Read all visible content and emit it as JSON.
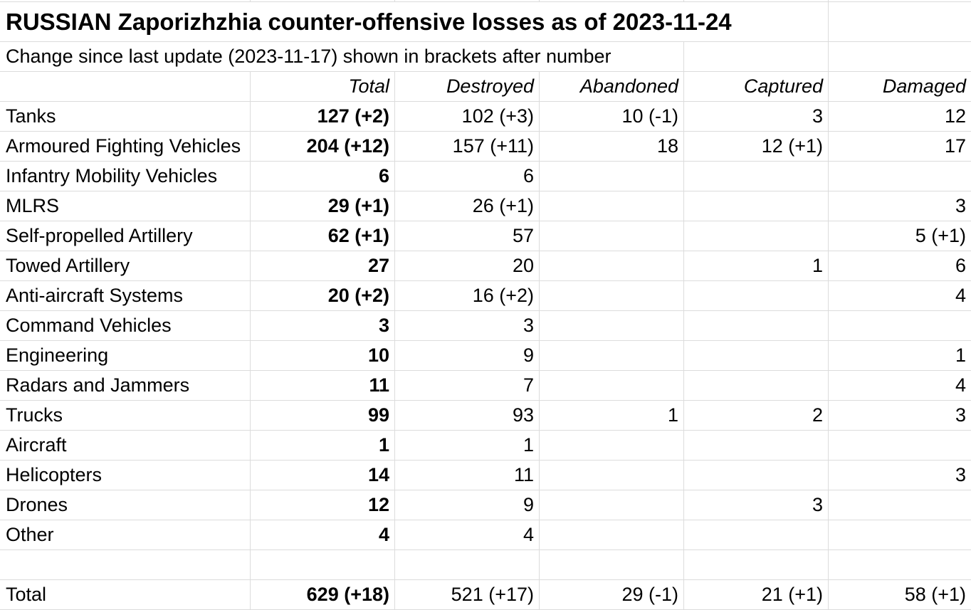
{
  "chart_data": {
    "type": "table",
    "title": "RUSSIAN Zaporizhzhia counter-offensive losses as of 2023-11-24",
    "subtitle": "Change since last update (2023-11-17) shown in brackets after number",
    "columns": [
      "",
      "Total",
      "Destroyed",
      "Abandoned",
      "Captured",
      "Damaged"
    ],
    "rows": [
      [
        "Tanks",
        "127 (+2)",
        "102 (+3)",
        "10 (-1)",
        "3",
        "12"
      ],
      [
        "Armoured Fighting Vehicles",
        "204 (+12)",
        "157 (+11)",
        "18",
        "12 (+1)",
        "17"
      ],
      [
        "Infantry Mobility Vehicles",
        "6",
        "6",
        "",
        "",
        ""
      ],
      [
        "MLRS",
        "29 (+1)",
        "26 (+1)",
        "",
        "",
        "3"
      ],
      [
        "Self-propelled Artillery",
        "62 (+1)",
        "57",
        "",
        "",
        "5 (+1)"
      ],
      [
        "Towed Artillery",
        "27",
        "20",
        "",
        "1",
        "6"
      ],
      [
        "Anti-aircraft Systems",
        "20 (+2)",
        "16 (+2)",
        "",
        "",
        "4"
      ],
      [
        "Command Vehicles",
        "3",
        "3",
        "",
        "",
        ""
      ],
      [
        "Engineering",
        "10",
        "9",
        "",
        "",
        "1"
      ],
      [
        "Radars and Jammers",
        "11",
        "7",
        "",
        "",
        "4"
      ],
      [
        "Trucks",
        "99",
        "93",
        "1",
        "2",
        "3"
      ],
      [
        "Aircraft",
        "1",
        "1",
        "",
        "",
        ""
      ],
      [
        "Helicopters",
        "14",
        "11",
        "",
        "",
        "3"
      ],
      [
        "Drones",
        "12",
        "9",
        "",
        "3",
        ""
      ],
      [
        "Other",
        "4",
        "4",
        "",
        "",
        ""
      ]
    ],
    "total_row": [
      "Total",
      "629 (+18)",
      "521 (+17)",
      "29 (-1)",
      "21 (+1)",
      "58 (+1)"
    ]
  },
  "styles": {
    "gridline_color": "#dcdcdc",
    "text_color": "#000000",
    "background_color": "#ffffff"
  }
}
